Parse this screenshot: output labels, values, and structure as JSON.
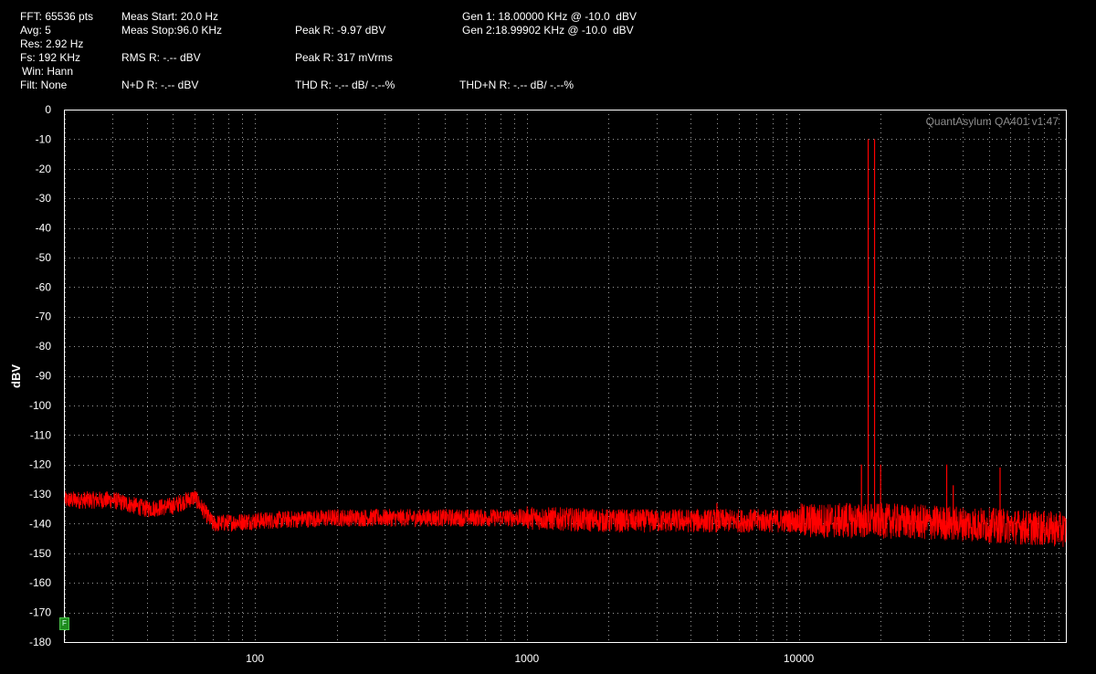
{
  "header": {
    "fft": "FFT: 65536 pts",
    "avg": "Avg: 5",
    "res": "Res: 2.92 Hz",
    "fs": "Fs: 192 KHz",
    "win": "Win: Hann",
    "filt": "Filt: None",
    "meas_start": "Meas Start: 20.0 Hz",
    "meas_stop": "Meas Stop:96.0 KHz",
    "rms": "RMS R: -.-- dBV",
    "nd": "N+D R: -.-- dBV",
    "peak_dbv": "Peak R: -9.97 dBV",
    "peak_mvrms": "Peak R: 317 mVrms",
    "thd": "THD R: -.-- dB/ -.--%",
    "gen1": "Gen 1: 18.00000 KHz @ -10.0  dBV",
    "gen2": "Gen 2:18.99902 KHz @ -10.0  dBV",
    "thdn": "THD+N R: -.-- dB/ -.--%"
  },
  "badge_label": "F",
  "chart_data": {
    "type": "line",
    "title": "",
    "watermark": "QuantAsylum QA401 v1.47",
    "xlabel": "",
    "ylabel": "dBV",
    "xscale": "log",
    "xlim": [
      20,
      96000
    ],
    "ylim": [
      -180,
      0
    ],
    "yticks": [
      0,
      -10,
      -20,
      -30,
      -40,
      -50,
      -60,
      -70,
      -80,
      -90,
      -100,
      -110,
      -120,
      -130,
      -140,
      -150,
      -160,
      -170,
      -180
    ],
    "xticks": [
      100,
      1000,
      10000
    ],
    "xtick_labels": [
      "100",
      "1000",
      "10000"
    ],
    "grid": true,
    "series": [
      {
        "color": "#ff0000",
        "noise_floor_points": [
          {
            "x": 20,
            "y": -132
          },
          {
            "x": 30,
            "y": -132
          },
          {
            "x": 40,
            "y": -135
          },
          {
            "x": 50,
            "y": -134
          },
          {
            "x": 60,
            "y": -131
          },
          {
            "x": 70,
            "y": -140
          },
          {
            "x": 100,
            "y": -139
          },
          {
            "x": 200,
            "y": -138
          },
          {
            "x": 500,
            "y": -138
          },
          {
            "x": 1000,
            "y": -138
          },
          {
            "x": 2000,
            "y": -139
          },
          {
            "x": 5000,
            "y": -139
          },
          {
            "x": 10000,
            "y": -139
          },
          {
            "x": 20000,
            "y": -139
          },
          {
            "x": 40000,
            "y": -140
          },
          {
            "x": 96000,
            "y": -142
          }
        ],
        "peaks": [
          {
            "x": 18000,
            "y": -10
          },
          {
            "x": 19000,
            "y": -10
          },
          {
            "x": 17000,
            "y": -120
          },
          {
            "x": 20000,
            "y": -120
          },
          {
            "x": 35000,
            "y": -120
          },
          {
            "x": 37000,
            "y": -127
          },
          {
            "x": 55000,
            "y": -121
          },
          {
            "x": 5000,
            "y": -133
          },
          {
            "x": 15000,
            "y": -133
          }
        ]
      }
    ]
  }
}
